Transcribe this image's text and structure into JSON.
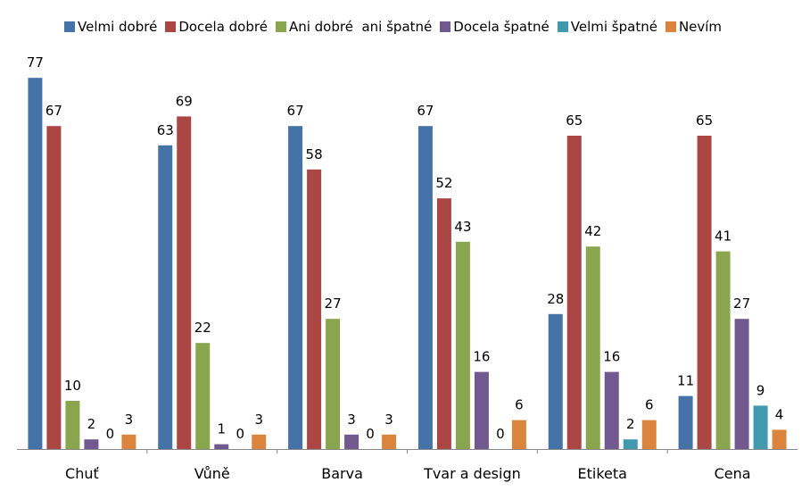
{
  "chart_data": {
    "type": "bar",
    "title": "",
    "xlabel": "",
    "ylabel": "",
    "ylim": [
      0,
      80
    ],
    "grid": false,
    "legend_position": "top",
    "categories": [
      "Chuť",
      "Vůně",
      "Barva",
      "Tvar a design",
      "Etiketa",
      "Cena"
    ],
    "series": [
      {
        "name": "Velmi dobré",
        "color": "#4572A7",
        "values": [
          77,
          63,
          67,
          67,
          28,
          11
        ]
      },
      {
        "name": "Docela dobré",
        "color": "#AA4643",
        "values": [
          67,
          69,
          58,
          52,
          65,
          65
        ]
      },
      {
        "name": "Ani dobré  ani špatné",
        "color": "#89A54E",
        "values": [
          10,
          22,
          27,
          43,
          42,
          41
        ]
      },
      {
        "name": "Docela špatné",
        "color": "#71588F",
        "values": [
          2,
          1,
          3,
          16,
          16,
          27
        ]
      },
      {
        "name": "Velmi špatné",
        "color": "#4198AF",
        "values": [
          0,
          0,
          0,
          0,
          2,
          9
        ]
      },
      {
        "name": "Nevím",
        "color": "#DB843D",
        "values": [
          3,
          3,
          3,
          6,
          6,
          4
        ]
      }
    ]
  }
}
